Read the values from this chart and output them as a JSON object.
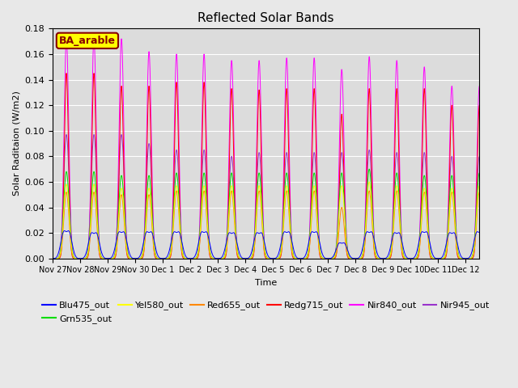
{
  "title": "Reflected Solar Bands",
  "ylabel": "Solar Raditaion (W/m2)",
  "xlabel": "Time",
  "ylim": [
    0,
    0.18
  ],
  "annotation_label": "BA_arable",
  "series": [
    {
      "name": "Blu475_out",
      "color": "#0000ff"
    },
    {
      "name": "Grn535_out",
      "color": "#00dd00"
    },
    {
      "name": "Yel580_out",
      "color": "#ffff00"
    },
    {
      "name": "Red655_out",
      "color": "#ff8800"
    },
    {
      "name": "Redg715_out",
      "color": "#ff0000"
    },
    {
      "name": "Nir840_out",
      "color": "#ff00ff"
    },
    {
      "name": "Nir945_out",
      "color": "#9933cc"
    }
  ],
  "n_days": 16,
  "points_per_day": 288,
  "tick_labels": [
    "Nov 27",
    "Nov 28",
    "Nov 29",
    "Nov 30",
    "Dec 1",
    "Dec 2",
    "Dec 3",
    "Dec 4",
    "Dec 5",
    "Dec 6",
    "Dec 7",
    "Dec 8",
    "Dec 9",
    "Dec 10",
    "Dec 11",
    "Dec 12"
  ],
  "background_color": "#e8e8e8",
  "plot_bg_color": "#dcdcdc",
  "grid_color": "#ffffff",
  "annotation_bg": "#ffff00",
  "annotation_border": "#880000",
  "annotation_text_color": "#880000",
  "day_peaks_nir840": [
    0.172,
    0.172,
    0.172,
    0.162,
    0.16,
    0.16,
    0.155,
    0.155,
    0.157,
    0.157,
    0.148,
    0.158,
    0.155,
    0.15,
    0.135,
    0.135
  ],
  "day_peaks_nir945": [
    0.097,
    0.097,
    0.097,
    0.09,
    0.085,
    0.085,
    0.08,
    0.083,
    0.083,
    0.083,
    0.083,
    0.085,
    0.083,
    0.083,
    0.08,
    0.08
  ],
  "day_peaks_redg715": [
    0.145,
    0.145,
    0.135,
    0.135,
    0.138,
    0.138,
    0.133,
    0.132,
    0.133,
    0.133,
    0.113,
    0.133,
    0.133,
    0.133,
    0.12,
    0.12
  ],
  "day_peaks_red655": [
    0.052,
    0.052,
    0.05,
    0.05,
    0.053,
    0.053,
    0.053,
    0.053,
    0.053,
    0.053,
    0.04,
    0.053,
    0.053,
    0.052,
    0.052,
    0.052
  ],
  "day_peaks_grn535": [
    0.068,
    0.068,
    0.065,
    0.065,
    0.067,
    0.067,
    0.067,
    0.067,
    0.067,
    0.067,
    0.067,
    0.07,
    0.067,
    0.065,
    0.065,
    0.067
  ],
  "day_peaks_yel580": [
    0.058,
    0.058,
    0.055,
    0.055,
    0.057,
    0.057,
    0.057,
    0.057,
    0.057,
    0.057,
    0.057,
    0.06,
    0.057,
    0.055,
    0.055,
    0.057
  ],
  "day_peaks_blu475": [
    0.03,
    0.028,
    0.029,
    0.029,
    0.029,
    0.029,
    0.028,
    0.028,
    0.029,
    0.029,
    0.017,
    0.029,
    0.028,
    0.029,
    0.028,
    0.029
  ]
}
